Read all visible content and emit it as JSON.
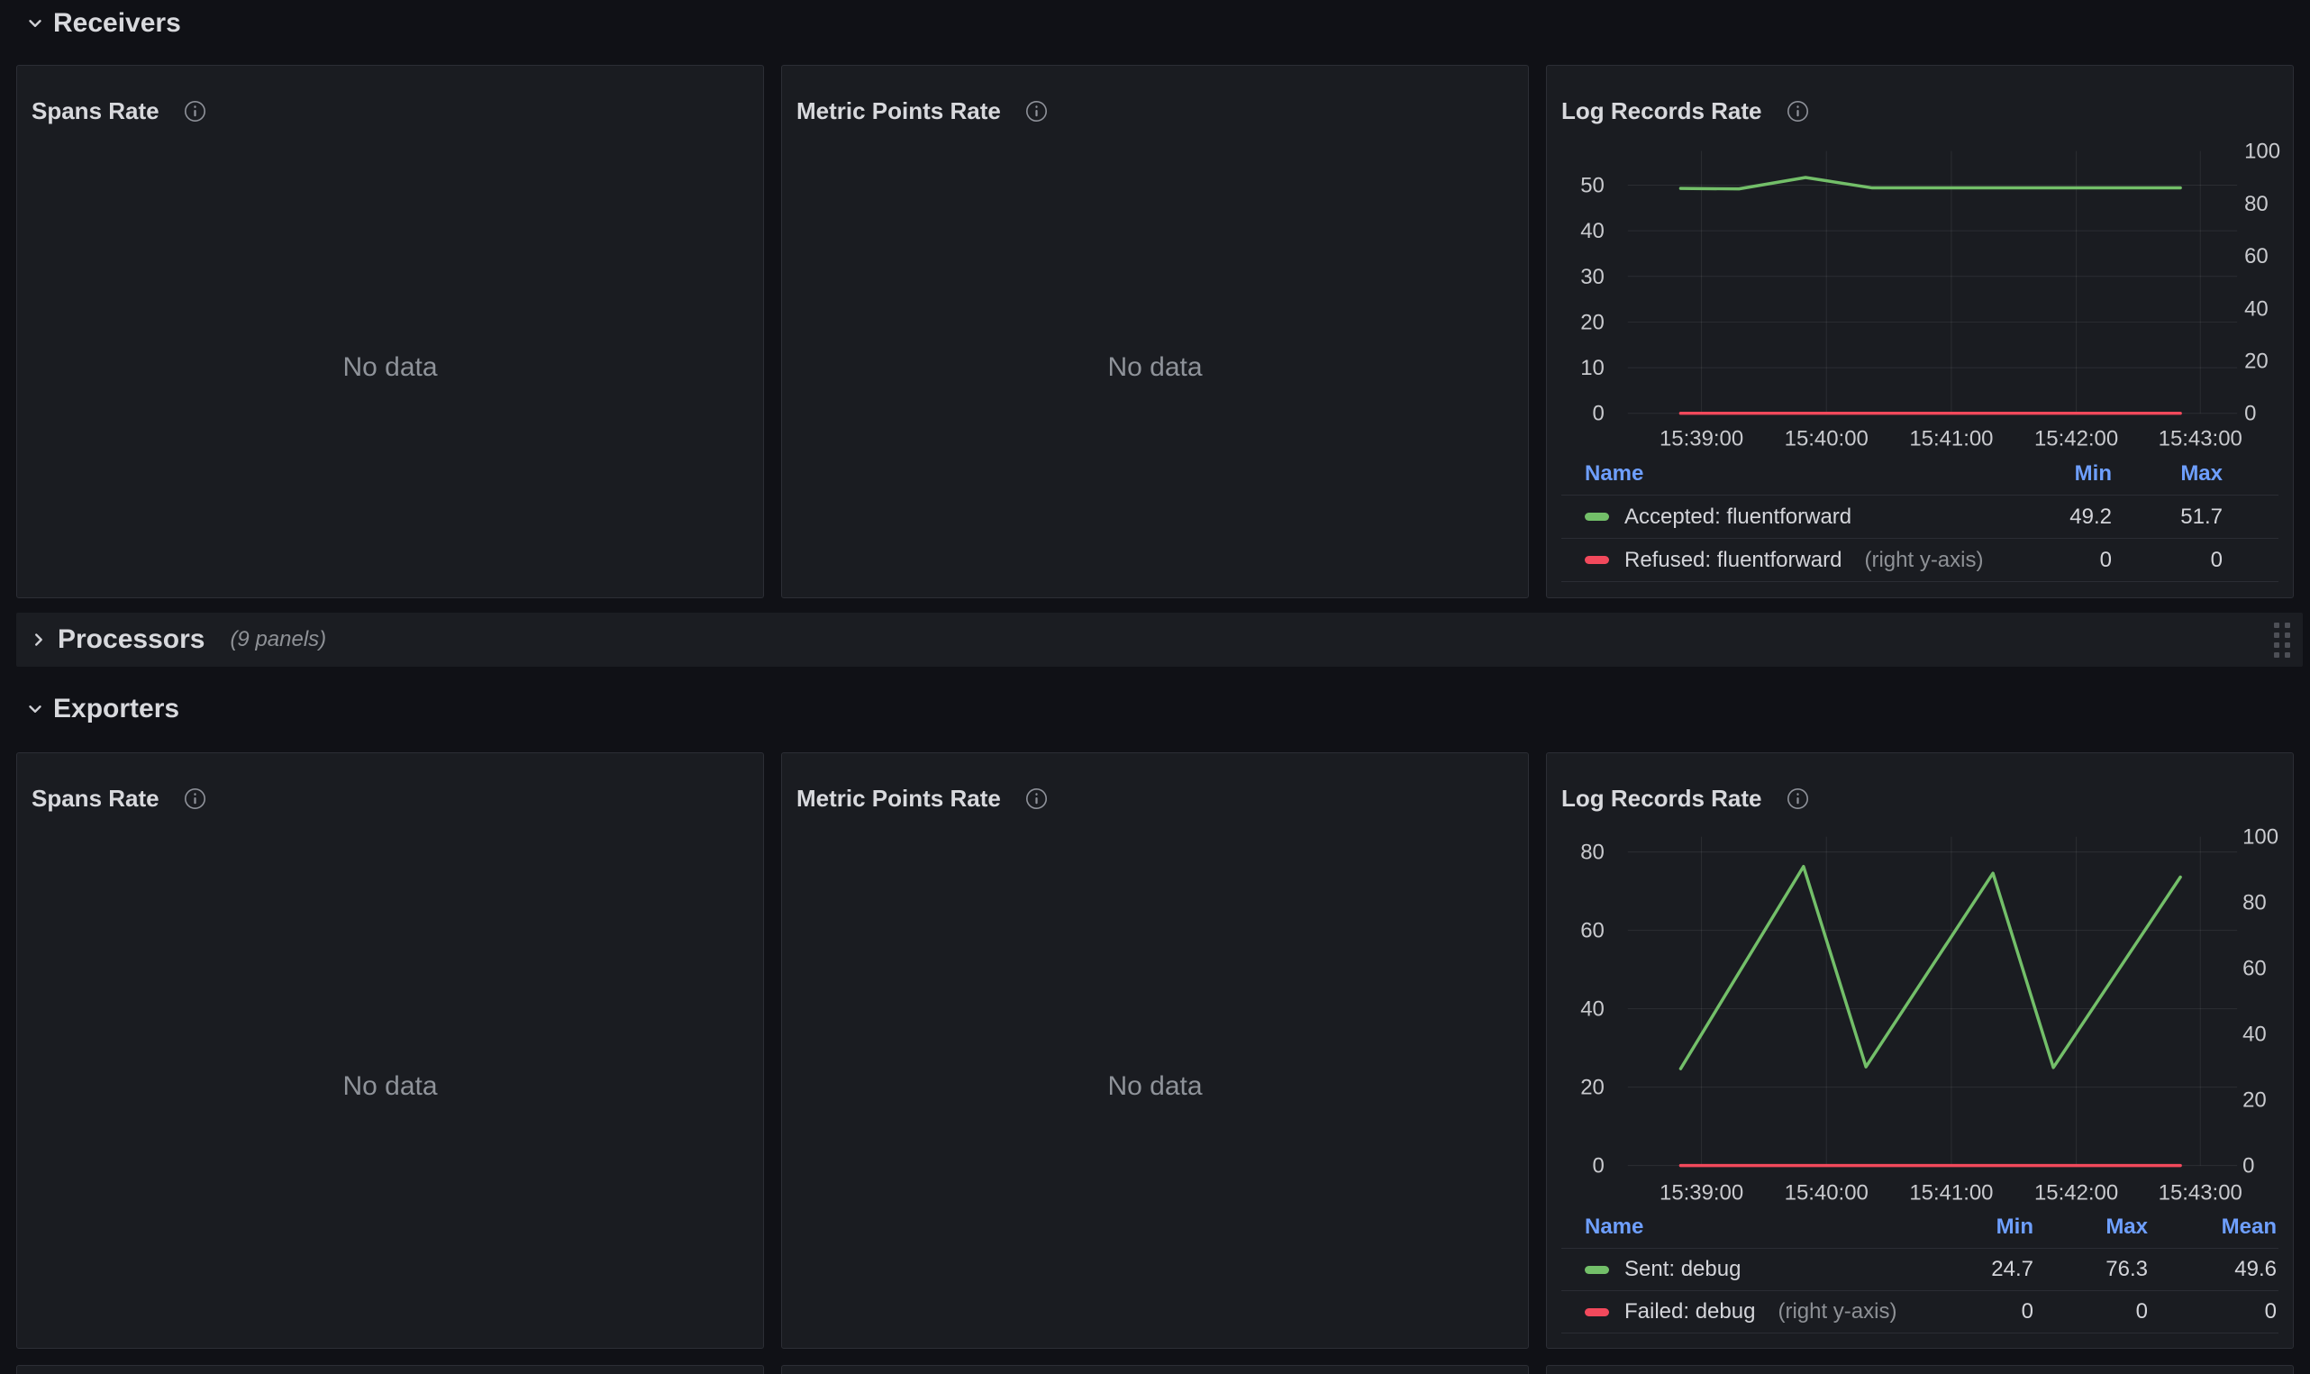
{
  "sections": {
    "receivers": {
      "title": "Receivers",
      "collapsed": false
    },
    "processors": {
      "title": "Processors",
      "panel_count": "(9 panels)",
      "collapsed": true
    },
    "exporters": {
      "title": "Exporters",
      "collapsed": false
    }
  },
  "panels": {
    "receivers_spans": {
      "title": "Spans Rate",
      "body": "No data"
    },
    "receivers_metric_points": {
      "title": "Metric Points Rate",
      "body": "No data"
    },
    "exporters_spans": {
      "title": "Spans Rate",
      "body": "No data"
    },
    "exporters_metric_points": {
      "title": "Metric Points Rate",
      "body": "No data"
    }
  },
  "colors": {
    "accent_green": "#73BF69",
    "accent_red": "#F2495C",
    "legend_header_blue": "#6E9FFF",
    "panel_background": "#1a1c21",
    "page_background": "#101116"
  },
  "chart_data": [
    {
      "id": "receivers-log-records-rate",
      "type": "line",
      "title": "Log Records Rate",
      "x_tick_labels": [
        "15:39:00",
        "15:40:00",
        "15:41:00",
        "15:42:00",
        "15:43:00"
      ],
      "left_axis": {
        "ticks": [
          0,
          10,
          20,
          30,
          40,
          50
        ],
        "min": 0,
        "max": 50
      },
      "right_axis": {
        "ticks": [
          0,
          20,
          40,
          60,
          80,
          100
        ],
        "min": 0,
        "max": 100
      },
      "grid": true,
      "legend_position": "bottom-table",
      "series": [
        {
          "name": "Accepted: fluentforward",
          "axis": "left",
          "color": "#73BF69",
          "points": [
            [
              "15:38:50",
              49.3
            ],
            [
              "15:39:18",
              49.2
            ],
            [
              "15:39:50",
              51.7
            ],
            [
              "15:40:22",
              49.4
            ],
            [
              "15:42:50",
              49.4
            ]
          ]
        },
        {
          "name": "Refused: fluentforward",
          "axis": "right",
          "color": "#F2495C",
          "points": [
            [
              "15:38:50",
              0
            ],
            [
              "15:42:50",
              0
            ]
          ]
        }
      ],
      "legend": {
        "columns": [
          "Name",
          "Min",
          "Max"
        ],
        "rows": [
          {
            "label": "Accepted: fluentforward",
            "suffix": "",
            "color": "#73BF69",
            "values": [
              "49.2",
              "51.7"
            ]
          },
          {
            "label": "Refused: fluentforward",
            "suffix": "(right y-axis)",
            "color": "#F2495C",
            "values": [
              "0",
              "0"
            ]
          }
        ]
      }
    },
    {
      "id": "exporters-log-records-rate",
      "type": "line",
      "title": "Log Records Rate",
      "x_tick_labels": [
        "15:39:00",
        "15:40:00",
        "15:41:00",
        "15:42:00",
        "15:43:00"
      ],
      "left_axis": {
        "ticks": [
          0,
          20,
          40,
          60,
          80
        ],
        "min": 0,
        "max": 80
      },
      "right_axis": {
        "ticks": [
          0,
          20,
          40,
          60,
          80,
          100
        ],
        "min": 0,
        "max": 100
      },
      "grid": true,
      "legend_position": "bottom-table",
      "series": [
        {
          "name": "Sent: debug",
          "axis": "left",
          "color": "#73BF69",
          "points": [
            [
              "15:38:50",
              24.7
            ],
            [
              "15:39:49",
              76.3
            ],
            [
              "15:40:19",
              25.2
            ],
            [
              "15:41:20",
              74.6
            ],
            [
              "15:41:49",
              25.0
            ],
            [
              "15:42:50",
              73.6
            ]
          ]
        },
        {
          "name": "Failed: debug",
          "axis": "right",
          "color": "#F2495C",
          "points": [
            [
              "15:38:50",
              0
            ],
            [
              "15:42:50",
              0
            ]
          ]
        }
      ],
      "legend": {
        "columns": [
          "Name",
          "Min",
          "Max",
          "Mean"
        ],
        "rows": [
          {
            "label": "Sent: debug",
            "suffix": "",
            "color": "#73BF69",
            "values": [
              "24.7",
              "76.3",
              "49.6"
            ]
          },
          {
            "label": "Failed: debug",
            "suffix": "(right y-axis)",
            "color": "#F2495C",
            "values": [
              "0",
              "0",
              "0"
            ]
          }
        ]
      }
    }
  ]
}
